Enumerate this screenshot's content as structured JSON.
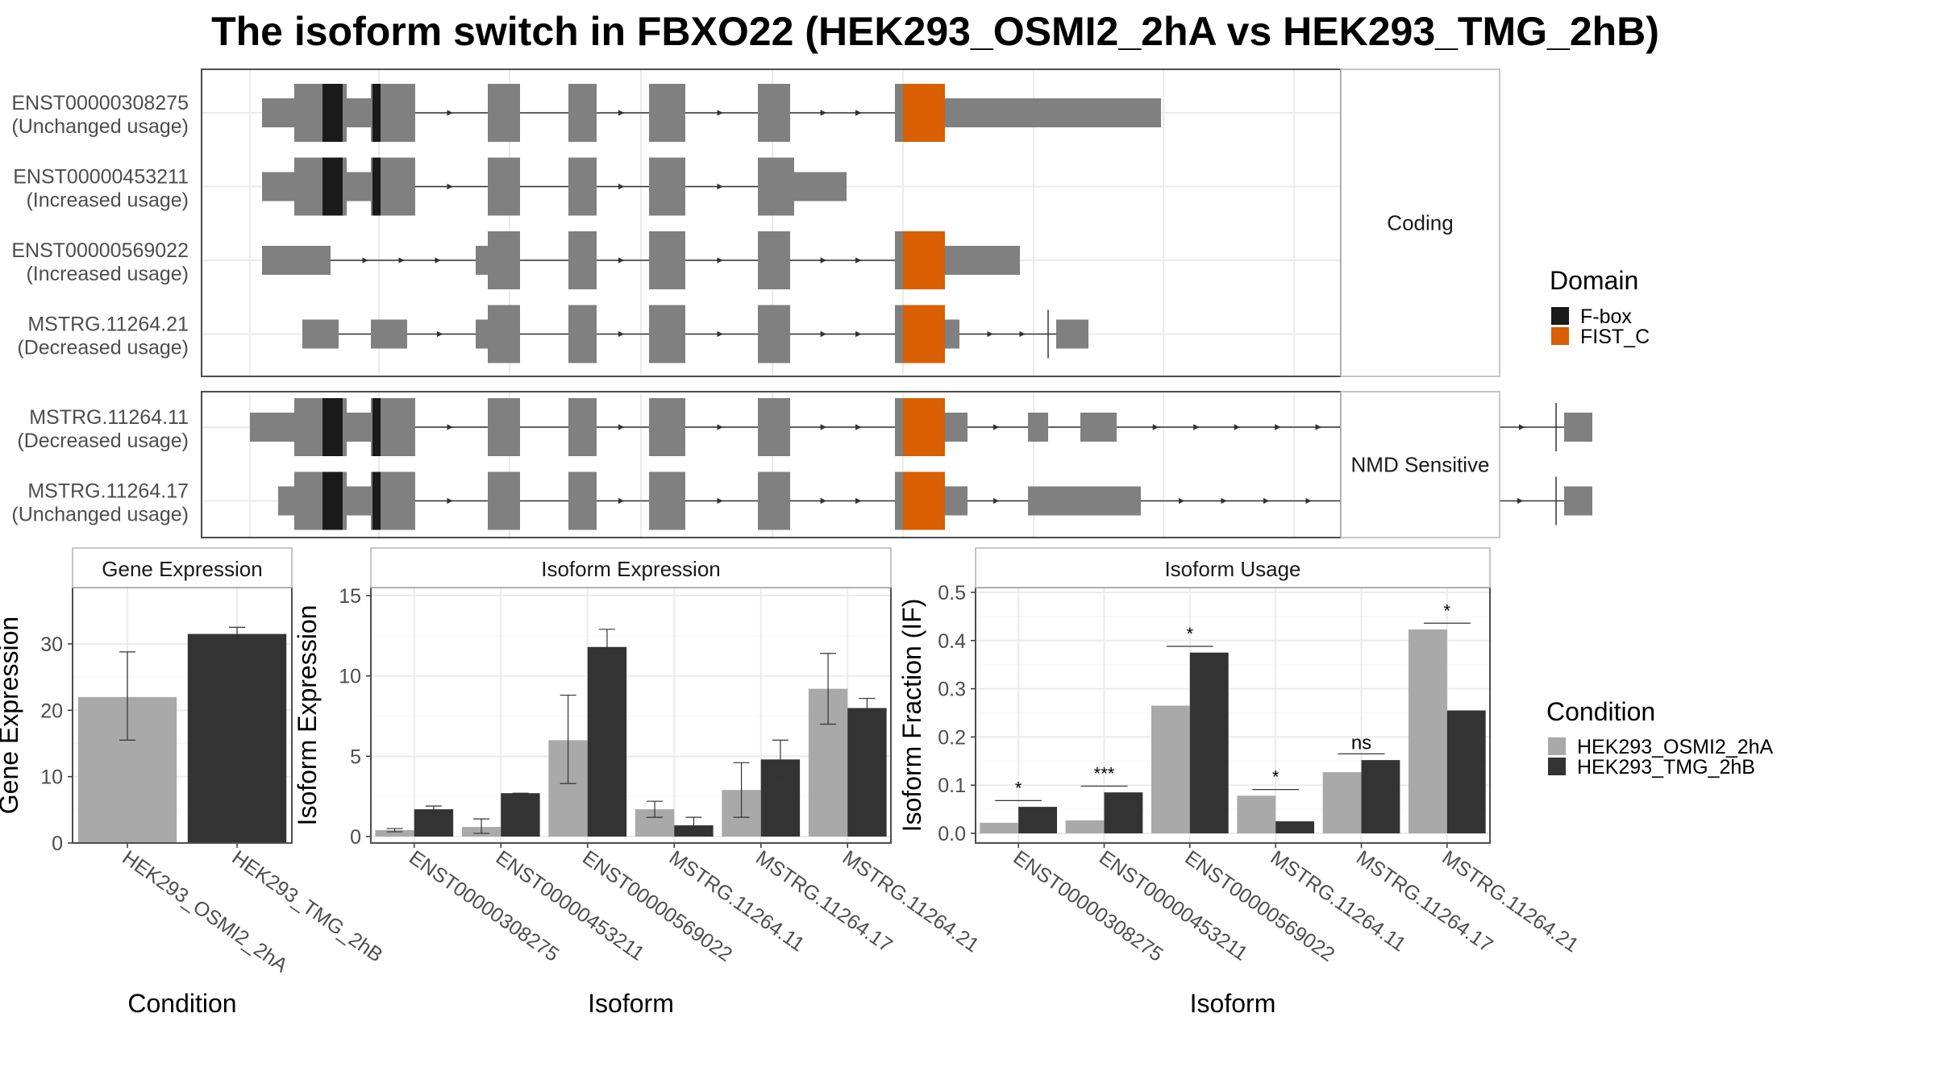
{
  "title": "The isoform switch in FBXO22 (HEK293_OSMI2_2hA vs HEK293_TMG_2hB)",
  "colors": {
    "exon": "#808080",
    "fbox": "#1a1a1a",
    "fist_c": "#d95f02",
    "cond_a": "#a9a9a9",
    "cond_b": "#333333",
    "panel_border": "#4d4d4d",
    "grid": "#ebebeb"
  },
  "structure": {
    "groups": [
      {
        "label": "Coding",
        "transcripts": [
          {
            "id": "ENST00000308275",
            "usage": "(Unchanged usage)",
            "end_type": "none",
            "start": 15,
            "end": 1130,
            "exons": [
              [
                15,
                55,
                "utr"
              ],
              [
                55,
                120,
                "cds"
              ],
              [
                120,
                150,
                "utr"
              ],
              [
                150,
                205,
                "cds"
              ],
              [
                295,
                335,
                "cds"
              ],
              [
                395,
                430,
                "cds"
              ],
              [
                495,
                540,
                "cds"
              ],
              [
                630,
                670,
                "cds"
              ],
              [
                800,
                860,
                "cds"
              ],
              [
                860,
                1130,
                "utr"
              ]
            ],
            "domains": [
              [
                90,
                115,
                "fbox"
              ],
              [
                152,
                162,
                "fbox"
              ],
              [
                810,
                862,
                "fist_c"
              ]
            ]
          },
          {
            "id": "ENST00000453211",
            "usage": "(Increased usage)",
            "end_type": "none",
            "start": 15,
            "end": 675,
            "exons": [
              [
                15,
                55,
                "utr"
              ],
              [
                55,
                120,
                "cds"
              ],
              [
                120,
                150,
                "utr"
              ],
              [
                150,
                205,
                "cds"
              ],
              [
                295,
                335,
                "cds"
              ],
              [
                395,
                430,
                "cds"
              ],
              [
                495,
                540,
                "cds"
              ],
              [
                630,
                675,
                "cds"
              ],
              [
                675,
                740,
                "utr"
              ]
            ],
            "domains": [
              [
                90,
                115,
                "fbox"
              ],
              [
                152,
                162,
                "fbox"
              ]
            ]
          },
          {
            "id": "ENST00000569022",
            "usage": "(Increased usage)",
            "end_type": "none",
            "start": 15,
            "end": 955,
            "exons": [
              [
                15,
                100,
                "utr"
              ],
              [
                280,
                295,
                "utr"
              ],
              [
                295,
                335,
                "cds"
              ],
              [
                395,
                430,
                "cds"
              ],
              [
                495,
                540,
                "cds"
              ],
              [
                630,
                670,
                "cds"
              ],
              [
                800,
                860,
                "cds"
              ],
              [
                860,
                955,
                "utr"
              ]
            ],
            "domains": [
              [
                810,
                862,
                "fist_c"
              ]
            ]
          },
          {
            "id": "MSTRG.11264.21",
            "usage": "(Decreased usage)",
            "end_type": "tick",
            "start": 65,
            "end": 1000,
            "exons": [
              [
                65,
                110,
                "utr"
              ],
              [
                150,
                195,
                "utr"
              ],
              [
                280,
                295,
                "utr"
              ],
              [
                295,
                335,
                "cds"
              ],
              [
                395,
                430,
                "cds"
              ],
              [
                495,
                540,
                "cds"
              ],
              [
                630,
                670,
                "cds"
              ],
              [
                800,
                860,
                "cds"
              ],
              [
                860,
                880,
                "utr"
              ],
              [
                1000,
                1040,
                "utr"
              ]
            ],
            "domains": [
              [
                810,
                862,
                "fist_c"
              ]
            ]
          }
        ]
      },
      {
        "label": "NMD Sensitive",
        "transcripts": [
          {
            "id": "MSTRG.11264.11",
            "usage": "(Decreased usage)",
            "end_type": "tick",
            "start": 0,
            "end": 1665,
            "exons": [
              [
                0,
                55,
                "utr"
              ],
              [
                55,
                120,
                "cds"
              ],
              [
                120,
                150,
                "utr"
              ],
              [
                150,
                205,
                "cds"
              ],
              [
                295,
                335,
                "cds"
              ],
              [
                395,
                430,
                "cds"
              ],
              [
                495,
                540,
                "cds"
              ],
              [
                630,
                670,
                "cds"
              ],
              [
                800,
                860,
                "cds"
              ],
              [
                860,
                890,
                "utr"
              ],
              [
                965,
                990,
                "utr"
              ],
              [
                1030,
                1075,
                "utr"
              ],
              [
                1630,
                1665,
                "utr"
              ]
            ],
            "domains": [
              [
                90,
                115,
                "fbox"
              ],
              [
                152,
                162,
                "fbox"
              ],
              [
                810,
                862,
                "fist_c"
              ]
            ]
          },
          {
            "id": "MSTRG.11264.17",
            "usage": "(Unchanged usage)",
            "end_type": "tick",
            "start": 35,
            "end": 1665,
            "exons": [
              [
                35,
                55,
                "utr"
              ],
              [
                55,
                120,
                "cds"
              ],
              [
                120,
                150,
                "utr"
              ],
              [
                150,
                205,
                "cds"
              ],
              [
                295,
                335,
                "cds"
              ],
              [
                395,
                430,
                "cds"
              ],
              [
                495,
                540,
                "cds"
              ],
              [
                630,
                670,
                "cds"
              ],
              [
                800,
                860,
                "cds"
              ],
              [
                860,
                890,
                "utr"
              ],
              [
                965,
                1105,
                "utr"
              ],
              [
                1630,
                1665,
                "utr"
              ]
            ],
            "domains": [
              [
                90,
                115,
                "fbox"
              ],
              [
                152,
                162,
                "fbox"
              ],
              [
                810,
                862,
                "fist_c"
              ]
            ]
          }
        ]
      }
    ]
  },
  "domain_legend": {
    "title": "Domain",
    "items": [
      {
        "label": "F-box",
        "color_key": "fbox"
      },
      {
        "label": "FIST_C",
        "color_key": "fist_c"
      }
    ]
  },
  "condition_legend": {
    "title": "Condition",
    "items": [
      {
        "label": "HEK293_OSMI2_2hA",
        "color_key": "cond_a"
      },
      {
        "label": "HEK293_TMG_2hB",
        "color_key": "cond_b"
      }
    ]
  },
  "chart_data": [
    {
      "type": "bar",
      "title": "Gene Expression",
      "xlabel": "Condition",
      "ylabel": "Gene Expression",
      "ylim": [
        0,
        38.5
      ],
      "yticks": [
        0,
        10,
        20,
        30
      ],
      "categories": [
        "HEK293_OSMI2_2hA",
        "HEK293_TMG_2hB"
      ],
      "series": [
        {
          "values": [
            22.0,
            31.5
          ],
          "err_low": [
            15.5,
            30.5
          ],
          "err_high": [
            28.8,
            32.5
          ]
        }
      ],
      "bar_colors": [
        "cond_a",
        "cond_b"
      ]
    },
    {
      "type": "bar",
      "title": "Isoform Expression",
      "xlabel": "Isoform",
      "ylabel": "Isoform Expression",
      "ylim": [
        -0.4,
        15.5
      ],
      "yticks": [
        0,
        5,
        10,
        15
      ],
      "categories": [
        "ENST00000308275",
        "ENST00000453211",
        "ENST00000569022",
        "MSTRG.11264.11",
        "MSTRG.11264.17",
        "MSTRG.11264.21"
      ],
      "series": [
        {
          "name": "HEK293_OSMI2_2hA",
          "color_key": "cond_a",
          "values": [
            0.4,
            0.6,
            6.0,
            1.7,
            2.9,
            9.2
          ],
          "err_low": [
            0.3,
            0.2,
            3.3,
            1.2,
            1.2,
            7.0
          ],
          "err_high": [
            0.5,
            1.1,
            8.8,
            2.2,
            4.6,
            11.4
          ]
        },
        {
          "name": "HEK293_TMG_2hB",
          "color_key": "cond_b",
          "values": [
            1.7,
            2.7,
            11.8,
            0.7,
            4.8,
            8.0
          ],
          "err_low": [
            1.6,
            2.6,
            10.8,
            0.3,
            3.7,
            7.5
          ],
          "err_high": [
            1.9,
            2.7,
            12.9,
            1.2,
            6.0,
            8.6
          ]
        }
      ]
    },
    {
      "type": "bar",
      "title": "Isoform Usage",
      "xlabel": "Isoform",
      "ylabel": "Isoform Fraction (IF)",
      "ylim": [
        -0.02,
        0.51
      ],
      "yticks": [
        0.0,
        0.1,
        0.2,
        0.3,
        0.4,
        0.5
      ],
      "ytick_labels": [
        "0.0",
        "0.1",
        "0.2",
        "0.3",
        "0.4",
        "0.5"
      ],
      "categories": [
        "ENST00000308275",
        "ENST00000453211",
        "ENST00000569022",
        "MSTRG.11264.11",
        "MSTRG.11264.17",
        "MSTRG.11264.21"
      ],
      "series": [
        {
          "name": "HEK293_OSMI2_2hA",
          "color_key": "cond_a",
          "values": [
            0.022,
            0.027,
            0.265,
            0.078,
            0.127,
            0.423
          ]
        },
        {
          "name": "HEK293_TMG_2hB",
          "color_key": "cond_b",
          "values": [
            0.055,
            0.085,
            0.375,
            0.025,
            0.152,
            0.255
          ]
        }
      ],
      "significance": [
        "*",
        "***",
        "*",
        "*",
        "ns",
        "*"
      ]
    }
  ]
}
